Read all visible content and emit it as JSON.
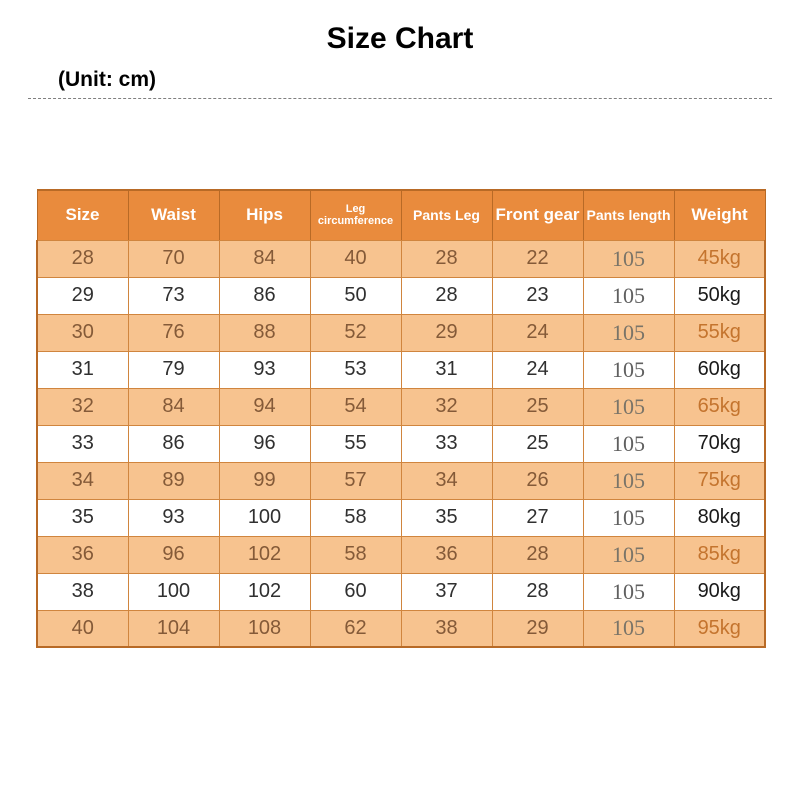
{
  "title": "Size Chart",
  "unit_label": "(Unit: cm)",
  "table": {
    "type": "table",
    "header_bg": "#e98b3d",
    "header_text_color": "#ffffff",
    "row_odd_bg": "#f7c38f",
    "row_even_bg": "#ffffff",
    "cell_text_odd": "#845a38",
    "cell_text_even": "#303030",
    "pants_length_odd": "#7a7468",
    "pants_length_even": "#606060",
    "weight_text_odd": "#c4742e",
    "weight_text_even": "#1a1a1a",
    "border_color": "#d0853e",
    "outer_border_color": "#b86a26",
    "columns": [
      {
        "label": "Size",
        "class": ""
      },
      {
        "label": "Waist",
        "class": ""
      },
      {
        "label": "Hips",
        "class": ""
      },
      {
        "label": "Leg circumference",
        "class": "small-header"
      },
      {
        "label": "Pants Leg",
        "class": "mid-header"
      },
      {
        "label": "Front gear",
        "class": ""
      },
      {
        "label": "Pants length",
        "class": "mid-header"
      },
      {
        "label": "Weight",
        "class": ""
      }
    ],
    "rows": [
      [
        "28",
        "70",
        "84",
        "40",
        "28",
        "22",
        "105",
        "45kg"
      ],
      [
        "29",
        "73",
        "86",
        "50",
        "28",
        "23",
        "105",
        "50kg"
      ],
      [
        "30",
        "76",
        "88",
        "52",
        "29",
        "24",
        "105",
        "55kg"
      ],
      [
        "31",
        "79",
        "93",
        "53",
        "31",
        "24",
        "105",
        "60kg"
      ],
      [
        "32",
        "84",
        "94",
        "54",
        "32",
        "25",
        "105",
        "65kg"
      ],
      [
        "33",
        "86",
        "96",
        "55",
        "33",
        "25",
        "105",
        "70kg"
      ],
      [
        "34",
        "89",
        "99",
        "57",
        "34",
        "26",
        "105",
        "75kg"
      ],
      [
        "35",
        "93",
        "100",
        "58",
        "35",
        "27",
        "105",
        "80kg"
      ],
      [
        "36",
        "96",
        "102",
        "58",
        "36",
        "28",
        "105",
        "85kg"
      ],
      [
        "38",
        "100",
        "102",
        "60",
        "37",
        "28",
        "105",
        "90kg"
      ],
      [
        "40",
        "104",
        "108",
        "62",
        "38",
        "29",
        "105",
        "95kg"
      ]
    ]
  }
}
